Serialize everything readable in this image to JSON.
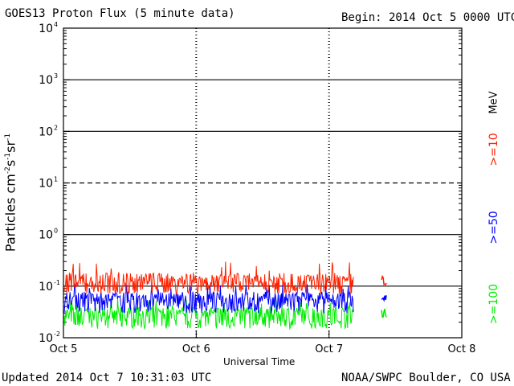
{
  "header": {
    "title": "GOES13 Proton Flux (5 minute data)",
    "begin": "Begin: 2014 Oct 5 0000 UTC"
  },
  "footer": {
    "updated": "Updated 2014 Oct  7 10:31:03 UTC",
    "credit": "NOAA/SWPC Boulder, CO USA"
  },
  "chart_data": {
    "type": "line",
    "title": "GOES13 Proton Flux (5 minute data)",
    "xlabel": "Universal Time",
    "ylabel": "Particles cm⁻²s⁻¹sr⁻¹",
    "y_scale": "log",
    "ylim": [
      0.01,
      10000
    ],
    "xlim": [
      "2014-10-05 00:00",
      "2014-10-08 00:00"
    ],
    "x_tick_labels": [
      "Oct 5",
      "Oct 6",
      "Oct 7",
      "Oct 8"
    ],
    "y_tick_labels": [
      {
        "base": "10",
        "exp": "-2"
      },
      {
        "base": "10",
        "exp": "-1"
      },
      {
        "base": "10",
        "exp": "0"
      },
      {
        "base": "10",
        "exp": "1"
      },
      {
        "base": "10",
        "exp": "2"
      },
      {
        "base": "10",
        "exp": "3"
      },
      {
        "base": "10",
        "exp": "4"
      }
    ],
    "threshold_lines": [
      {
        "value": 0.1,
        "style": "solid"
      },
      {
        "value": 1,
        "style": "solid"
      },
      {
        "value": 10,
        "style": "dashed"
      },
      {
        "value": 100,
        "style": "solid"
      },
      {
        "value": 1000,
        "style": "solid"
      }
    ],
    "units_label": "MeV",
    "series": [
      {
        "name": ">=10",
        "color": "#ff2200",
        "typical": 0.12,
        "range": [
          0.07,
          0.3
        ]
      },
      {
        "name": ">=50",
        "color": "#0000ff",
        "typical": 0.055,
        "range": [
          0.03,
          0.12
        ]
      },
      {
        "name": ">=100",
        "color": "#00ee00",
        "typical": 0.028,
        "range": [
          0.015,
          0.06
        ]
      }
    ],
    "data_end": "2014-10-07 04:30",
    "extra_segment": [
      "2014-10-07 09:30",
      "2014-10-07 10:30"
    ]
  }
}
